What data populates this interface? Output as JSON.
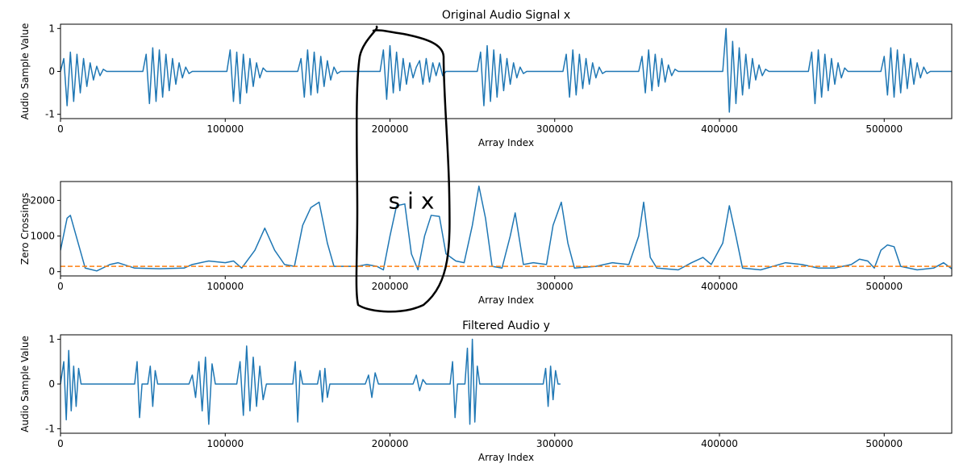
{
  "chart_data": [
    {
      "type": "line",
      "title": "Original Audio Signal x",
      "xlabel": "Array Index",
      "ylabel": "Audio Sample Value",
      "xlim": [
        0,
        541000
      ],
      "xticks": [
        0,
        100000,
        200000,
        300000,
        400000,
        500000
      ],
      "ylim": [
        -1.1,
        1.1
      ],
      "yticks": [
        -1,
        0,
        1
      ],
      "series": [
        {
          "color": "#1f77b4",
          "linestyle": "solid",
          "x": [
            0,
            2000,
            4000,
            6000,
            8000,
            10000,
            12000,
            14000,
            16000,
            18000,
            20000,
            22000,
            24000,
            26000,
            28000,
            50000,
            52000,
            54000,
            56000,
            58000,
            60000,
            62000,
            64000,
            66000,
            68000,
            70000,
            72000,
            74000,
            76000,
            78000,
            80000,
            101000,
            103000,
            105000,
            107000,
            109000,
            111000,
            113000,
            115000,
            117000,
            119000,
            121000,
            123000,
            125000,
            144000,
            146000,
            148000,
            150000,
            152000,
            154000,
            156000,
            158000,
            160000,
            162000,
            164000,
            166000,
            168000,
            170000,
            194000,
            196000,
            198000,
            200000,
            202000,
            204000,
            206000,
            208000,
            210000,
            212000,
            214000,
            216000,
            218000,
            220000,
            222000,
            224000,
            226000,
            228000,
            230000,
            232000,
            234000,
            253000,
            255000,
            257000,
            259000,
            261000,
            263000,
            265000,
            267000,
            269000,
            271000,
            273000,
            275000,
            277000,
            279000,
            281000,
            283000,
            305000,
            307000,
            309000,
            311000,
            313000,
            315000,
            317000,
            319000,
            321000,
            323000,
            325000,
            327000,
            329000,
            331000,
            351000,
            353000,
            355000,
            357000,
            359000,
            361000,
            363000,
            365000,
            367000,
            369000,
            371000,
            373000,
            375000,
            402000,
            404000,
            406000,
            408000,
            410000,
            412000,
            414000,
            416000,
            418000,
            420000,
            422000,
            424000,
            426000,
            428000,
            430000,
            454000,
            456000,
            458000,
            460000,
            462000,
            464000,
            466000,
            468000,
            470000,
            472000,
            474000,
            476000,
            478000,
            498000,
            500000,
            502000,
            504000,
            506000,
            508000,
            510000,
            512000,
            514000,
            516000,
            518000,
            520000,
            522000,
            524000,
            526000,
            528000,
            541000
          ],
          "values": [
            0,
            0.3,
            -0.8,
            0.45,
            -0.7,
            0.4,
            -0.5,
            0.3,
            -0.35,
            0.2,
            -0.2,
            0.12,
            -0.1,
            0.05,
            0,
            0,
            0.4,
            -0.75,
            0.55,
            -0.7,
            0.5,
            -0.6,
            0.4,
            -0.45,
            0.3,
            -0.3,
            0.2,
            -0.15,
            0.1,
            -0.05,
            0,
            0,
            0.5,
            -0.7,
            0.45,
            -0.75,
            0.4,
            -0.5,
            0.3,
            -0.35,
            0.2,
            -0.15,
            0.08,
            0,
            0,
            0.3,
            -0.6,
            0.5,
            -0.55,
            0.45,
            -0.5,
            0.35,
            -0.35,
            0.25,
            -0.2,
            0.1,
            -0.05,
            0,
            0,
            0.5,
            -0.65,
            0.6,
            -0.5,
            0.45,
            -0.45,
            0.3,
            -0.3,
            0.2,
            -0.15,
            0.1,
            0.25,
            -0.3,
            0.3,
            -0.25,
            0.2,
            -0.1,
            0.2,
            -0.1,
            0,
            0,
            0.45,
            -0.8,
            0.6,
            -0.7,
            0.5,
            -0.6,
            0.4,
            -0.45,
            0.3,
            -0.3,
            0.2,
            -0.15,
            0.1,
            -0.05,
            0,
            0,
            0.4,
            -0.6,
            0.5,
            -0.55,
            0.4,
            -0.4,
            0.3,
            -0.3,
            0.2,
            -0.15,
            0.1,
            -0.05,
            0,
            0,
            0.35,
            -0.5,
            0.5,
            -0.45,
            0.4,
            -0.35,
            0.3,
            -0.25,
            0.15,
            -0.1,
            0.05,
            0,
            0,
            1.0,
            -0.95,
            0.7,
            -0.75,
            0.55,
            -0.55,
            0.4,
            -0.4,
            0.3,
            -0.2,
            0.15,
            -0.1,
            0.05,
            0,
            0,
            0.45,
            -0.75,
            0.5,
            -0.6,
            0.4,
            -0.45,
            0.3,
            -0.3,
            0.2,
            -0.15,
            0.08,
            0,
            0,
            0.35,
            -0.55,
            0.55,
            -0.6,
            0.5,
            -0.5,
            0.4,
            -0.4,
            0.3,
            -0.3,
            0.2,
            -0.15,
            0.1,
            -0.05,
            0,
            0
          ]
        }
      ]
    },
    {
      "type": "line",
      "xlabel": "Array Index",
      "ylabel": "Zero Crossings",
      "xlim": [
        0,
        541000
      ],
      "xticks": [
        0,
        100000,
        200000,
        300000,
        400000,
        500000
      ],
      "ylim": [
        -120,
        2530
      ],
      "yticks": [
        0,
        1000,
        2000
      ],
      "annotations": [
        {
          "text": "s i x",
          "x": 213000,
          "y": 2000
        }
      ],
      "series": [
        {
          "color": "#1f77b4",
          "linestyle": "solid",
          "x": [
            0,
            4000,
            6000,
            15000,
            22000,
            30000,
            35000,
            45000,
            60000,
            75000,
            80000,
            90000,
            100000,
            105000,
            110000,
            118000,
            124000,
            130000,
            136000,
            142000,
            147000,
            152000,
            157000,
            162000,
            166000,
            180000,
            186000,
            192000,
            196000,
            200000,
            204000,
            209000,
            213000,
            217000,
            221000,
            225000,
            230000,
            234000,
            240000,
            245000,
            250000,
            254000,
            258000,
            262000,
            268000,
            273000,
            276000,
            281000,
            287000,
            295000,
            299000,
            304000,
            308000,
            312000,
            325000,
            335000,
            345000,
            351000,
            354000,
            358000,
            362000,
            375000,
            383000,
            390000,
            395000,
            402000,
            406000,
            410000,
            414000,
            425000,
            440000,
            450000,
            460000,
            470000,
            480000,
            485000,
            490000,
            494000,
            498000,
            502000,
            506000,
            510000,
            520000,
            530000,
            536000,
            541000
          ],
          "values": [
            600,
            1500,
            1580,
            100,
            20,
            200,
            250,
            100,
            80,
            100,
            200,
            300,
            250,
            300,
            100,
            600,
            1220,
            600,
            200,
            150,
            1300,
            1800,
            1950,
            800,
            150,
            150,
            200,
            150,
            50,
            1000,
            1850,
            1900,
            500,
            50,
            1000,
            1580,
            1550,
            500,
            300,
            250,
            1300,
            2400,
            1500,
            150,
            100,
            1000,
            1650,
            200,
            250,
            200,
            1300,
            1950,
            800,
            100,
            150,
            250,
            200,
            1000,
            1950,
            400,
            100,
            50,
            250,
            400,
            200,
            800,
            1850,
            1000,
            100,
            50,
            250,
            200,
            100,
            100,
            200,
            350,
            300,
            100,
            600,
            750,
            700,
            150,
            50,
            100,
            250,
            80
          ]
        },
        {
          "color": "#ff7f0e",
          "linestyle": "dashed",
          "x": [
            0,
            541000
          ],
          "values": [
            150,
            150
          ]
        }
      ]
    },
    {
      "type": "line",
      "title": "Filtered Audio y",
      "xlabel": "Array Index",
      "ylabel": "Audio Sample Value",
      "xlim": [
        0,
        541000
      ],
      "xticks": [
        0,
        100000,
        200000,
        300000,
        400000,
        500000
      ],
      "ylim": [
        -1.1,
        1.1
      ],
      "yticks": [
        -1,
        0,
        1
      ],
      "series": [
        {
          "color": "#1f77b4",
          "linestyle": "solid",
          "x": [
            0,
            2000,
            3500,
            5000,
            6500,
            8000,
            9500,
            11000,
            12500,
            45000,
            46500,
            48000,
            49500,
            53000,
            54500,
            56000,
            57500,
            59000,
            78000,
            80000,
            82000,
            84000,
            86000,
            88000,
            90000,
            92000,
            94000,
            107000,
            109000,
            111000,
            113000,
            115000,
            117000,
            119000,
            121000,
            123000,
            125000,
            141000,
            142500,
            144000,
            145500,
            147000,
            156000,
            157500,
            159000,
            160500,
            162000,
            163500,
            185000,
            187000,
            189000,
            191000,
            193000,
            214000,
            216000,
            218000,
            220000,
            222000,
            236500,
            238000,
            239500,
            241000,
            245500,
            247000,
            248500,
            250000,
            251500,
            253000,
            254500,
            293000,
            294500,
            296000,
            297500,
            299000,
            300500,
            302000,
            303500
          ],
          "values": [
            0,
            0.5,
            -0.8,
            0.75,
            -0.6,
            0.4,
            -0.5,
            0.35,
            0,
            0,
            0.5,
            -0.75,
            0,
            0,
            0.4,
            -0.5,
            0.3,
            0,
            0,
            0.2,
            -0.3,
            0.5,
            -0.6,
            0.6,
            -0.9,
            0.45,
            0,
            0,
            0.5,
            -0.7,
            0.85,
            -0.6,
            0.6,
            -0.5,
            0.4,
            -0.35,
            0,
            0,
            0.5,
            -0.85,
            0.3,
            0,
            0,
            0.3,
            -0.4,
            0.35,
            -0.3,
            0,
            0,
            0.2,
            -0.3,
            0.25,
            0,
            0,
            0.2,
            -0.15,
            0.1,
            0,
            0,
            0.5,
            -0.75,
            0,
            0,
            0.8,
            -0.9,
            1.0,
            -0.85,
            0.4,
            0,
            0,
            0.35,
            -0.5,
            0.4,
            -0.35,
            0.3,
            0,
            0
          ]
        }
      ]
    }
  ]
}
